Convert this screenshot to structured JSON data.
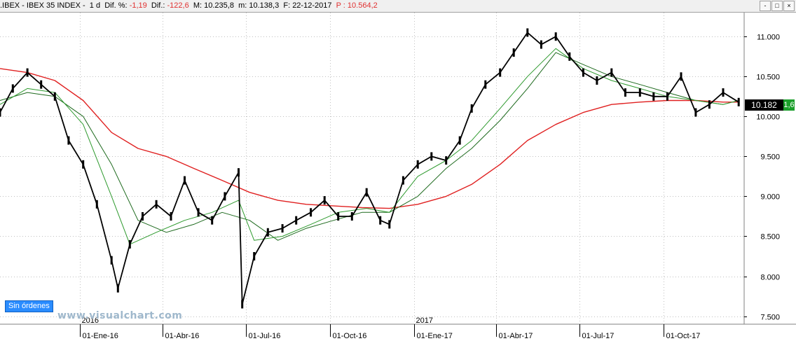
{
  "header": {
    "symbol": ".IBEX",
    "name": "IBEX 35 INDEX",
    "timeframe": "1 d",
    "dif_pct_label": "Dif. %:",
    "dif_pct_value": "-1,19",
    "dif_label": "Dif.:",
    "dif_value": "-122,6",
    "max_label": "M:",
    "max_value": "10.235,8",
    "min_label": "m:",
    "min_value": "10.138,3",
    "date_label": "F:",
    "date_value": "22-12-2017",
    "p_label": "P :",
    "p_value": "10.564,2",
    "window_buttons": [
      "-",
      "□",
      "×"
    ]
  },
  "orders_button": "Sin órdenes",
  "watermark": "www.visualchart.com",
  "last_price_label": "10.182",
  "last_change_label": "1,6",
  "colors": {
    "candles": "#000000",
    "ma_short": "#2e9a2e",
    "ma_medium": "#1e6a1e",
    "ma_long": "#e02020",
    "grid": "#c0c0c0"
  },
  "chart_data": {
    "type": "line",
    "title": "",
    "xlabel": "",
    "ylabel": "",
    "ylim": [
      7400,
      11300
    ],
    "y_ticks": [
      "11.000",
      "10.500",
      "10.000",
      "9.500",
      "9.000",
      "8.500",
      "8.000",
      "7.500"
    ],
    "y_tick_values": [
      11000,
      10500,
      10000,
      9500,
      9000,
      8500,
      8000,
      7500
    ],
    "x_ticks": [
      "01-Ene-16",
      "01-Abr-16",
      "01-Jul-16",
      "01-Oct-16",
      "01-Ene-17",
      "01-Abr-17",
      "01-Jul-17",
      "01-Oct-17"
    ],
    "x_tick_dates": [
      "2016-01-01",
      "2016-04-01",
      "2016-07-01",
      "2016-10-01",
      "2017-01-01",
      "2017-04-01",
      "2017-07-01",
      "2017-10-01"
    ],
    "year_labels": [
      {
        "label": "2016",
        "date": "2016-01-01"
      },
      {
        "label": "2017",
        "date": "2017-01-01"
      }
    ],
    "x_range": [
      "2015-10-06",
      "2017-12-28"
    ],
    "grid": true,
    "series": [
      {
        "kind": "price",
        "x": [
          "2015-10-06",
          "2015-10-20",
          "2015-11-05",
          "2015-11-20",
          "2015-12-05",
          "2015-12-20",
          "2016-01-05",
          "2016-01-20",
          "2016-02-05",
          "2016-02-12",
          "2016-02-25",
          "2016-03-10",
          "2016-03-25",
          "2016-04-10",
          "2016-04-25",
          "2016-05-10",
          "2016-05-25",
          "2016-06-08",
          "2016-06-23",
          "2016-06-27",
          "2016-07-10",
          "2016-07-25",
          "2016-08-10",
          "2016-08-25",
          "2016-09-10",
          "2016-09-25",
          "2016-10-10",
          "2016-10-25",
          "2016-11-10",
          "2016-11-25",
          "2016-12-05",
          "2016-12-20",
          "2017-01-05",
          "2017-01-20",
          "2017-02-05",
          "2017-02-20",
          "2017-03-05",
          "2017-03-20",
          "2017-04-05",
          "2017-04-20",
          "2017-05-05",
          "2017-05-20",
          "2017-06-05",
          "2017-06-20",
          "2017-07-05",
          "2017-07-20",
          "2017-08-05",
          "2017-08-20",
          "2017-09-05",
          "2017-09-20",
          "2017-10-05",
          "2017-10-20",
          "2017-11-05",
          "2017-11-20",
          "2017-12-05",
          "2017-12-22"
        ],
        "values": [
          10050,
          10350,
          10550,
          10400,
          10250,
          9700,
          9400,
          8900,
          8200,
          7850,
          8400,
          8750,
          8900,
          8750,
          9200,
          8800,
          8700,
          9000,
          9300,
          7650,
          8250,
          8550,
          8600,
          8700,
          8800,
          8950,
          8750,
          8750,
          9050,
          8700,
          8650,
          9200,
          9400,
          9500,
          9450,
          9700,
          10100,
          10400,
          10550,
          10800,
          11050,
          10900,
          11000,
          10750,
          10550,
          10450,
          10550,
          10300,
          10300,
          10250,
          10250,
          10500,
          10050,
          10150,
          10300,
          10180
        ]
      },
      {
        "kind": "ma_short",
        "x": [
          "2015-10-06",
          "2015-11-05",
          "2015-12-05",
          "2016-01-05",
          "2016-02-05",
          "2016-02-25",
          "2016-03-25",
          "2016-04-25",
          "2016-05-25",
          "2016-06-23",
          "2016-07-10",
          "2016-08-10",
          "2016-09-10",
          "2016-10-10",
          "2016-11-10",
          "2016-12-05",
          "2017-01-05",
          "2017-02-05",
          "2017-03-05",
          "2017-04-05",
          "2017-05-05",
          "2017-06-05",
          "2017-07-05",
          "2017-08-05",
          "2017-09-05",
          "2017-10-05",
          "2017-11-05",
          "2017-12-05",
          "2017-12-22"
        ],
        "values": [
          10150,
          10350,
          10300,
          9900,
          9000,
          8400,
          8550,
          8700,
          8800,
          8950,
          8450,
          8500,
          8650,
          8800,
          8850,
          8800,
          9250,
          9450,
          9700,
          10100,
          10500,
          10850,
          10600,
          10450,
          10350,
          10250,
          10200,
          10150,
          10200
        ]
      },
      {
        "kind": "ma_medium",
        "x": [
          "2015-10-06",
          "2015-11-05",
          "2015-12-05",
          "2016-01-05",
          "2016-02-05",
          "2016-03-05",
          "2016-04-05",
          "2016-05-05",
          "2016-06-05",
          "2016-07-05",
          "2016-08-05",
          "2016-09-05",
          "2016-10-05",
          "2016-11-05",
          "2016-12-05",
          "2017-01-05",
          "2017-02-05",
          "2017-03-05",
          "2017-04-05",
          "2017-05-05",
          "2017-06-05",
          "2017-07-05",
          "2017-08-05",
          "2017-09-05",
          "2017-10-05",
          "2017-11-05",
          "2017-12-05",
          "2017-12-22"
        ],
        "values": [
          10200,
          10300,
          10250,
          10000,
          9400,
          8700,
          8550,
          8650,
          8800,
          8700,
          8450,
          8600,
          8700,
          8800,
          8800,
          9000,
          9350,
          9600,
          9950,
          10350,
          10800,
          10650,
          10500,
          10400,
          10300,
          10200,
          10150,
          10200
        ]
      },
      {
        "kind": "ma_long",
        "x": [
          "2015-10-06",
          "2015-11-05",
          "2015-12-05",
          "2016-01-05",
          "2016-02-05",
          "2016-03-05",
          "2016-04-05",
          "2016-05-05",
          "2016-06-05",
          "2016-07-05",
          "2016-08-05",
          "2016-09-05",
          "2016-10-05",
          "2016-11-05",
          "2016-12-05",
          "2017-01-05",
          "2017-02-05",
          "2017-03-05",
          "2017-04-05",
          "2017-05-05",
          "2017-06-05",
          "2017-07-05",
          "2017-08-05",
          "2017-09-05",
          "2017-10-05",
          "2017-11-05",
          "2017-12-05",
          "2017-12-22"
        ],
        "values": [
          10600,
          10550,
          10450,
          10200,
          9800,
          9600,
          9500,
          9350,
          9200,
          9050,
          8950,
          8900,
          8880,
          8860,
          8850,
          8900,
          9000,
          9150,
          9400,
          9700,
          9900,
          10050,
          10150,
          10180,
          10200,
          10200,
          10180,
          10180
        ]
      }
    ]
  }
}
